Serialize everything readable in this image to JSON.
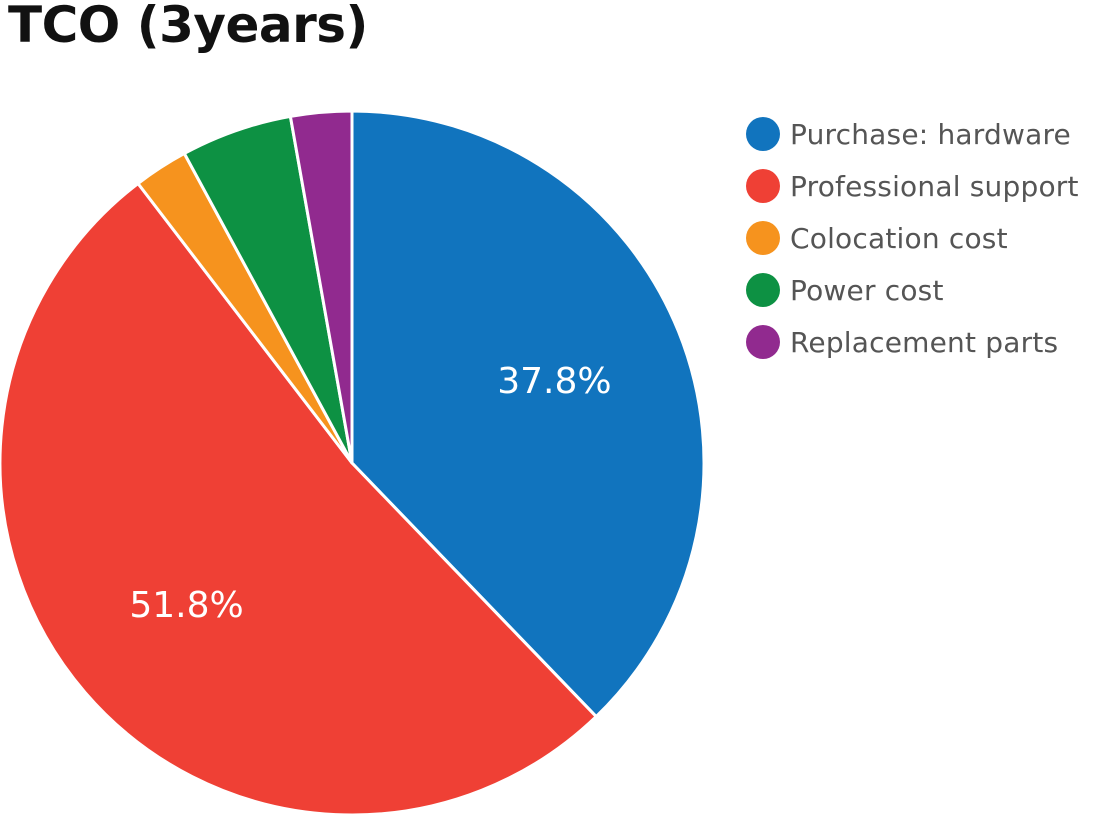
{
  "chart_data": {
    "type": "pie",
    "title": "TCO (3years)",
    "legend_position": "right",
    "start_angle": "12-o-clock",
    "direction": "clockwise",
    "slices": [
      {
        "name": "Purchase: hardware",
        "value": 37.8,
        "label": "37.8%",
        "color": "#1174be"
      },
      {
        "name": "Professional support",
        "value": 51.8,
        "label": "51.8%",
        "color": "#ef4035"
      },
      {
        "name": "Colocation cost",
        "value": 2.5,
        "label": "",
        "color": "#f6931e"
      },
      {
        "name": "Power cost",
        "value": 5.1,
        "label": "",
        "color": "#0d9143"
      },
      {
        "name": "Replacement parts",
        "value": 2.8,
        "label": "",
        "color": "#912a8f"
      }
    ]
  }
}
